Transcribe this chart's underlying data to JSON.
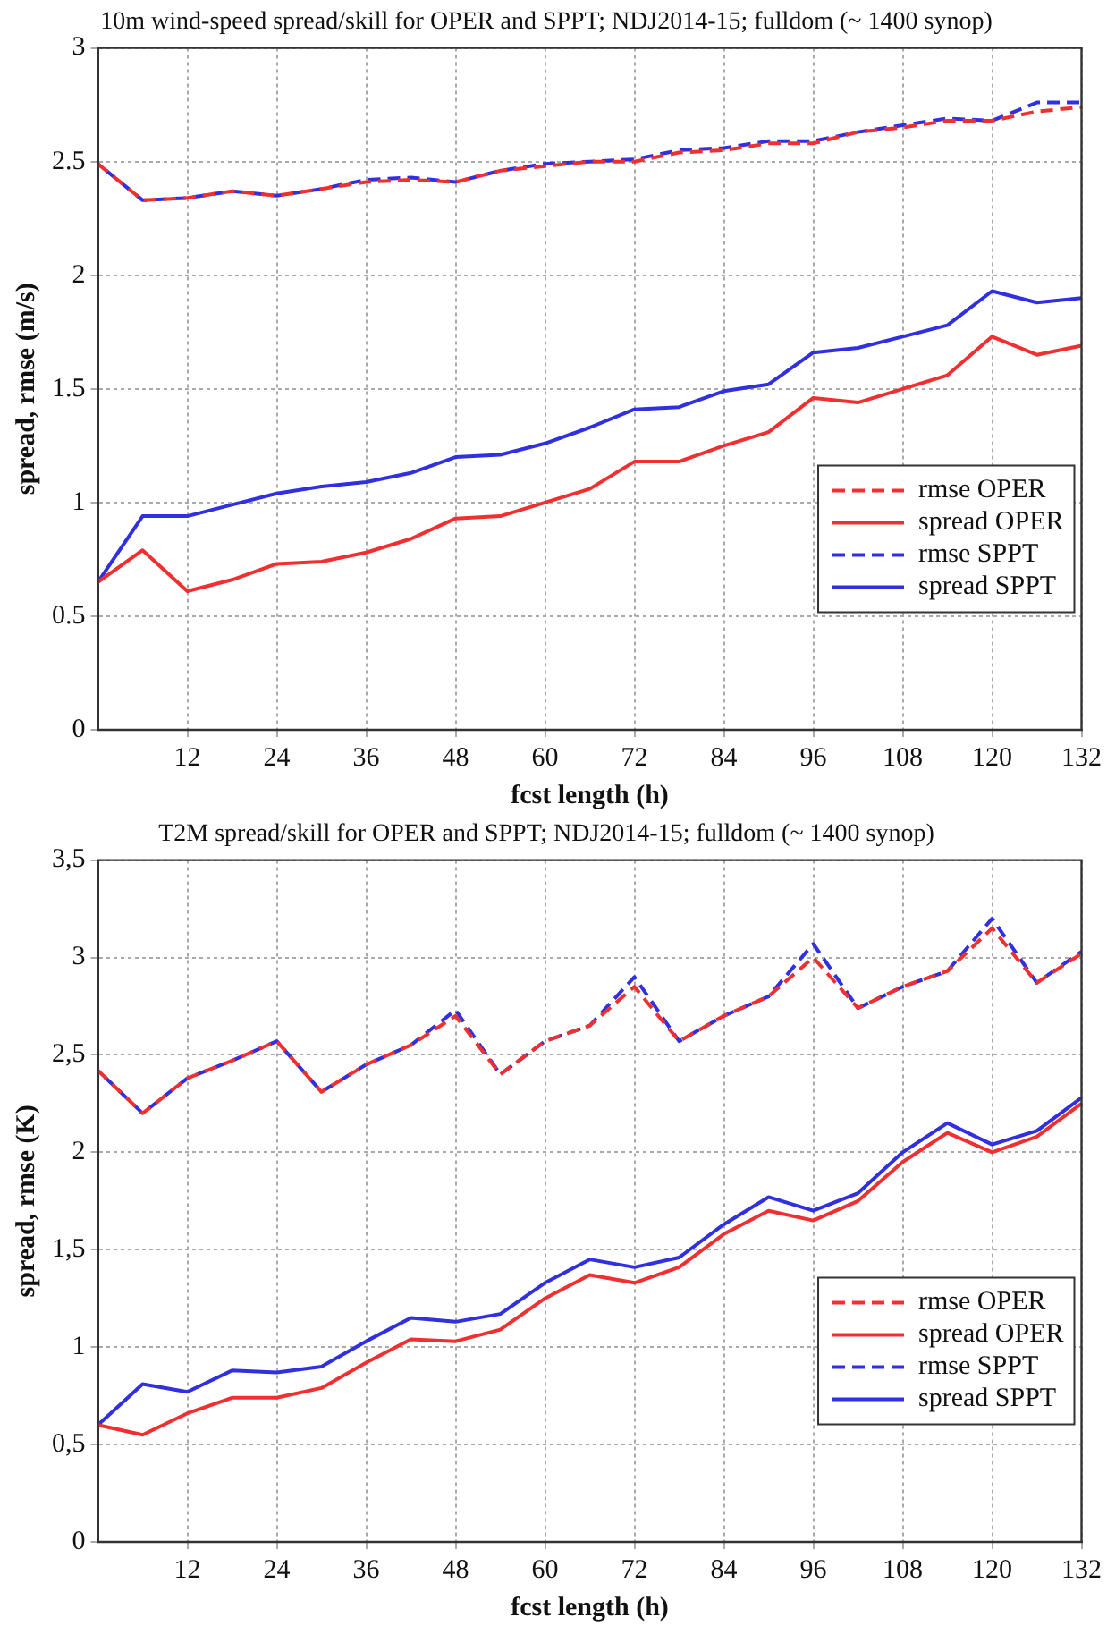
{
  "chart_data": [
    {
      "type": "line",
      "title": "10m wind-speed spread/skill for OPER and SPPT; NDJ2014-15; fulldom (~ 1400 synop)",
      "xlabel": "fcst length (h)",
      "ylabel": "spread, rmse (m/s)",
      "x": [
        0,
        6,
        12,
        18,
        24,
        30,
        36,
        42,
        48,
        54,
        60,
        66,
        72,
        78,
        84,
        90,
        96,
        102,
        108,
        114,
        120,
        126,
        132
      ],
      "xlim": [
        0,
        132
      ],
      "xticks": [
        12,
        24,
        36,
        48,
        60,
        72,
        84,
        96,
        108,
        120,
        132
      ],
      "ylim": [
        0,
        3
      ],
      "yticks": [
        0,
        0.5,
        1,
        1.5,
        2,
        2.5,
        3
      ],
      "grid": true,
      "legend": "bottom right",
      "marker": "none",
      "series": [
        {
          "name": "rmse OPER",
          "color": "#f03030",
          "line_style": "dashed",
          "values": [
            2.49,
            2.33,
            2.34,
            2.37,
            2.35,
            2.38,
            2.41,
            2.42,
            2.41,
            2.46,
            2.48,
            2.5,
            2.5,
            2.54,
            2.55,
            2.58,
            2.58,
            2.63,
            2.65,
            2.68,
            2.68,
            2.72,
            2.74
          ]
        },
        {
          "name": "spread OPER",
          "color": "#f03030",
          "line_style": "solid",
          "values": [
            0.65,
            0.79,
            0.61,
            0.66,
            0.73,
            0.74,
            0.78,
            0.84,
            0.93,
            0.94,
            1,
            1.06,
            1.18,
            1.18,
            1.25,
            1.31,
            1.46,
            1.44,
            1.5,
            1.56,
            1.73,
            1.65,
            1.69
          ]
        },
        {
          "name": "rmse SPPT",
          "color": "#3030e0",
          "line_style": "dashed",
          "values": [
            2.49,
            2.33,
            2.34,
            2.37,
            2.35,
            2.38,
            2.42,
            2.43,
            2.41,
            2.46,
            2.49,
            2.5,
            2.51,
            2.55,
            2.56,
            2.59,
            2.59,
            2.63,
            2.66,
            2.69,
            2.68,
            2.76,
            2.76
          ]
        },
        {
          "name": "spread SPPT",
          "color": "#3030e0",
          "line_style": "solid",
          "values": [
            0.65,
            0.94,
            0.94,
            0.99,
            1.04,
            1.07,
            1.09,
            1.13,
            1.2,
            1.21,
            1.26,
            1.33,
            1.41,
            1.42,
            1.49,
            1.52,
            1.66,
            1.68,
            1.73,
            1.78,
            1.93,
            1.88,
            1.9
          ]
        }
      ]
    },
    {
      "type": "line",
      "title": "T2M spread/skill for OPER and SPPT; NDJ2014-15; fulldom (~ 1400 synop)",
      "xlabel": "fcst length (h)",
      "ylabel": "spread, rmse (K)",
      "x": [
        0,
        6,
        12,
        18,
        24,
        30,
        36,
        42,
        48,
        54,
        60,
        66,
        72,
        78,
        84,
        90,
        96,
        102,
        108,
        114,
        120,
        126,
        132
      ],
      "xlim": [
        0,
        132
      ],
      "xticks": [
        12,
        24,
        36,
        48,
        60,
        72,
        84,
        96,
        108,
        120,
        132
      ],
      "ylim": [
        0,
        3.5
      ],
      "yticks": [
        0,
        {
          "value": 0.5,
          "label": "0,5"
        },
        1,
        {
          "value": 1.5,
          "label": "1,5"
        },
        2,
        {
          "value": 2.5,
          "label": "2,5"
        },
        3,
        {
          "value": 3.5,
          "label": "3,5"
        }
      ],
      "grid": true,
      "legend": "bottom right",
      "marker": "none",
      "series": [
        {
          "name": "rmse OPER",
          "color": "#f03030",
          "line_style": "dashed",
          "values": [
            2.42,
            2.2,
            2.38,
            2.47,
            2.57,
            2.31,
            2.45,
            2.55,
            2.7,
            2.4,
            2.57,
            2.65,
            2.85,
            2.57,
            2.7,
            2.8,
            3,
            2.74,
            2.85,
            2.93,
            3.15,
            2.87,
            3.02
          ]
        },
        {
          "name": "spread OPER",
          "color": "#f03030",
          "line_style": "solid",
          "values": [
            0.6,
            0.55,
            0.66,
            0.74,
            0.74,
            0.79,
            0.92,
            1.04,
            1.03,
            1.09,
            1.25,
            1.37,
            1.33,
            1.41,
            1.58,
            1.7,
            1.65,
            1.75,
            1.95,
            2.1,
            2,
            2.08,
            2.25
          ]
        },
        {
          "name": "rmse SPPT",
          "color": "#3030e0",
          "line_style": "dashed",
          "values": [
            2.42,
            2.2,
            2.38,
            2.47,
            2.57,
            2.31,
            2.45,
            2.55,
            2.73,
            2.4,
            2.57,
            2.65,
            2.9,
            2.57,
            2.7,
            2.8,
            3.07,
            2.74,
            2.85,
            2.93,
            3.2,
            2.87,
            3.03
          ]
        },
        {
          "name": "spread SPPT",
          "color": "#3030e0",
          "line_style": "solid",
          "values": [
            0.6,
            0.81,
            0.77,
            0.88,
            0.87,
            0.9,
            1.03,
            1.15,
            1.13,
            1.17,
            1.33,
            1.45,
            1.41,
            1.46,
            1.63,
            1.77,
            1.7,
            1.79,
            2,
            2.15,
            2.04,
            2.11,
            2.28
          ]
        }
      ]
    }
  ]
}
